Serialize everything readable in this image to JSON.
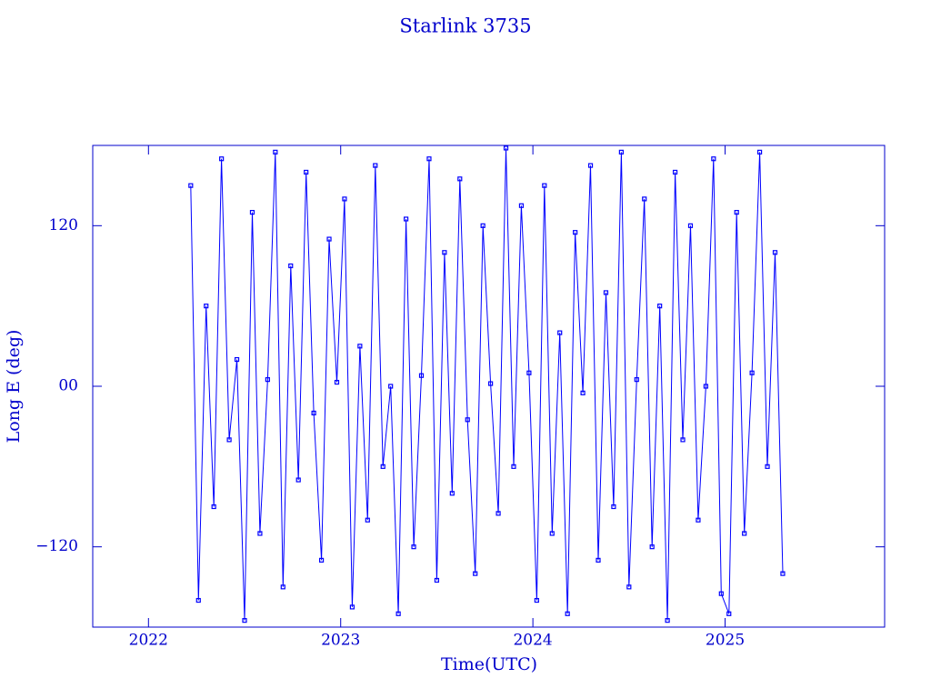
{
  "chart_data": {
    "type": "line",
    "title": "Starlink 3735",
    "x_label": "Time(UTC)",
    "y_label": "Long E (deg)",
    "x": [
      2022.22,
      2022.26,
      2022.3,
      2022.34,
      2022.38,
      2022.42,
      2022.46,
      2022.5,
      2022.54,
      2022.58,
      2022.62,
      2022.66,
      2022.7,
      2022.74,
      2022.78,
      2022.82,
      2022.86,
      2022.9,
      2022.94,
      2022.98,
      2023.02,
      2023.06,
      2023.1,
      2023.14,
      2023.18,
      2023.22,
      2023.26,
      2023.3,
      2023.34,
      2023.38,
      2023.42,
      2023.46,
      2023.5,
      2023.54,
      2023.58,
      2023.62,
      2023.66,
      2023.7,
      2023.74,
      2023.78,
      2023.82,
      2023.86,
      2023.9,
      2023.94,
      2023.98,
      2024.02,
      2024.06,
      2024.1,
      2024.14,
      2024.18,
      2024.22,
      2024.26,
      2024.3,
      2024.34,
      2024.38,
      2024.42,
      2024.46,
      2024.5,
      2024.54,
      2024.58,
      2024.62,
      2024.66,
      2024.7,
      2024.74,
      2024.78,
      2024.82,
      2024.86,
      2024.9,
      2024.94,
      2024.98,
      2025.02,
      2025.06,
      2025.1,
      2025.14,
      2025.18,
      2025.22,
      2025.26,
      2025.3
    ],
    "series": [
      {
        "color": "#0000ff",
        "values": [
          150,
          -160,
          60,
          -90,
          170,
          -40,
          20,
          -175,
          130,
          -110,
          5,
          175,
          -150,
          90,
          -70,
          160,
          -20,
          -130,
          110,
          3,
          140,
          -165,
          30,
          -100,
          165,
          -60,
          0,
          -170,
          125,
          -120,
          8,
          170,
          -145,
          100,
          -80,
          155,
          -25,
          -140,
          120,
          2,
          -95,
          178,
          -60,
          135,
          10,
          -160,
          150,
          -110,
          40,
          -170,
          115,
          -5,
          165,
          -130,
          70,
          -90,
          175,
          -150,
          5,
          140,
          -120,
          60,
          -175,
          160,
          -40,
          120,
          -100,
          0,
          170,
          -155,
          -170,
          130,
          -110,
          10,
          175,
          -60,
          100,
          -140
        ]
      }
    ],
    "xlim": [
      2021.71,
      2025.83
    ],
    "xticks": [
      2022,
      2023,
      2024,
      2025
    ],
    "ylim": [
      -180,
      180
    ],
    "yticks": [
      {
        "value": -120,
        "label": "−120"
      },
      {
        "value": 0,
        "label": "00"
      },
      120
    ]
  }
}
